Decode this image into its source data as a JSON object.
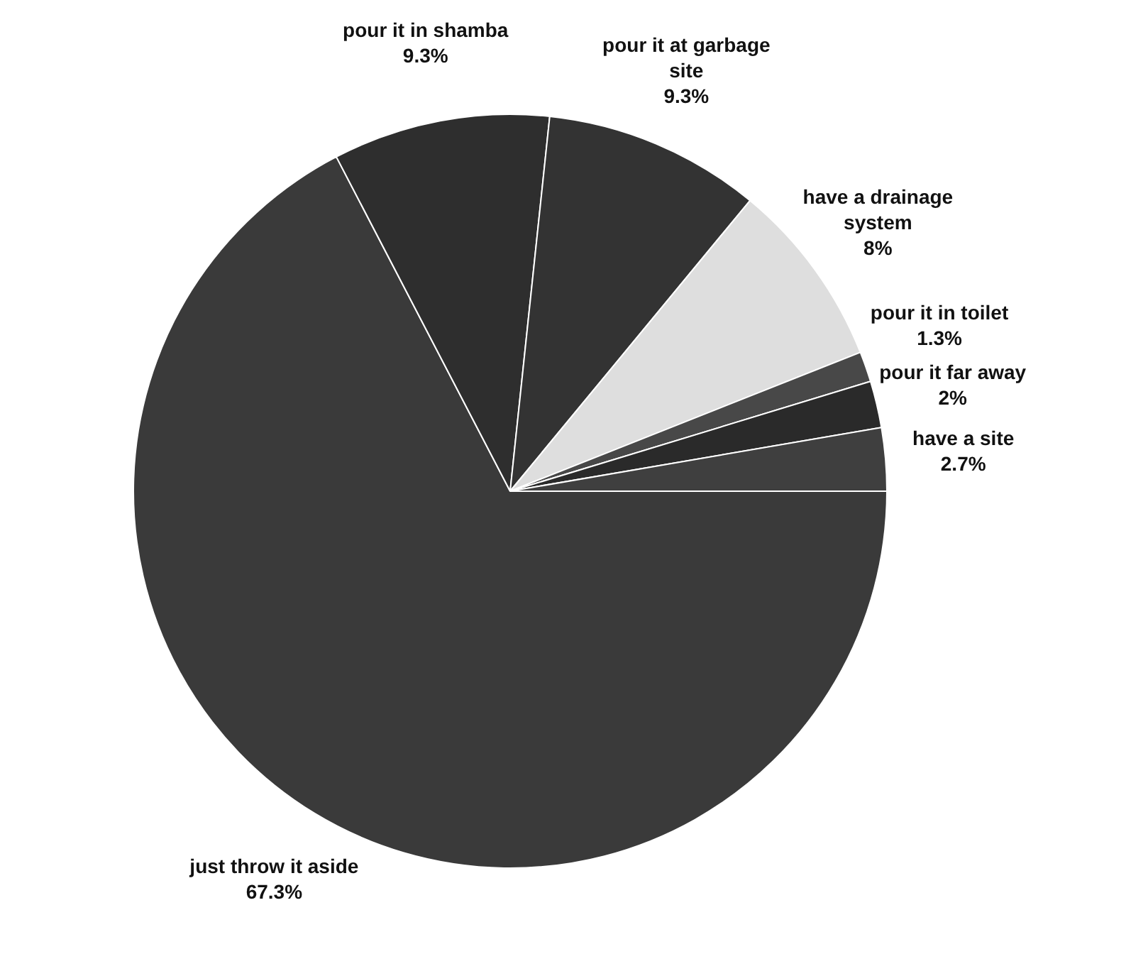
{
  "chart_data": {
    "type": "pie",
    "categories": [
      "just throw it aside",
      "pour it in shamba",
      "pour it at garbage site",
      "have a drainage system",
      "pour it in toilet",
      "pour it far away",
      "have a site"
    ],
    "values": [
      67.3,
      9.3,
      9.3,
      8,
      1.3,
      2,
      2.7
    ],
    "value_labels": [
      "67.3%",
      "9.3%",
      "9.3%",
      "8%",
      "1.3%",
      "2%",
      "2.7%"
    ],
    "colors": [
      "#3a3a3a",
      "#2e2e2e",
      "#333333",
      "#dedede",
      "#484848",
      "#2a2a2a",
      "#3f3f3f"
    ],
    "legend": false
  }
}
